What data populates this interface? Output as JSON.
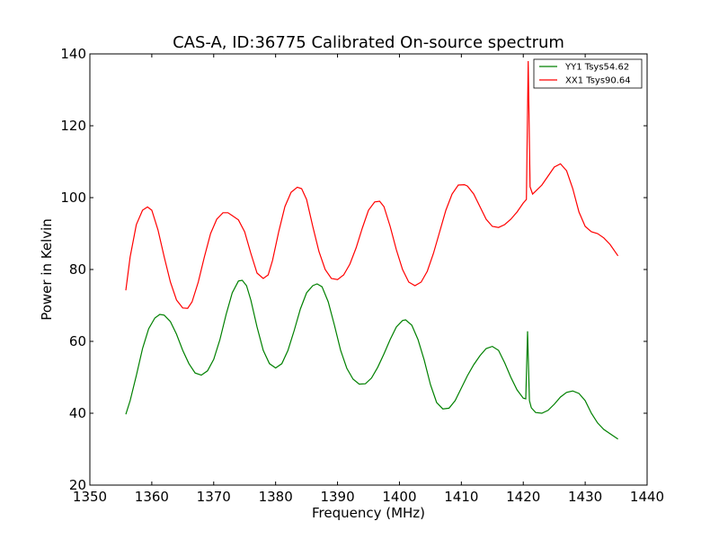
{
  "chart_data": {
    "type": "line",
    "title": "CAS-A, ID:36775 Calibrated On-source spectrum",
    "xlabel": "Frequency (MHz)",
    "ylabel": "Power in Kelvin",
    "xlim": [
      1350,
      1440
    ],
    "ylim": [
      20,
      140
    ],
    "xticks": [
      1350,
      1360,
      1370,
      1380,
      1390,
      1400,
      1410,
      1420,
      1430,
      1440
    ],
    "yticks": [
      20,
      40,
      60,
      80,
      100,
      120,
      140
    ],
    "grid": false,
    "legend_position": "top-right",
    "series": [
      {
        "name": "YY1 Tsys54.62",
        "color": "#008000",
        "x": [
          1355.8,
          1356.5,
          1357.5,
          1358.5,
          1359.5,
          1360.5,
          1361.3,
          1362.0,
          1363.0,
          1364.0,
          1365.0,
          1366.0,
          1367.0,
          1368.0,
          1369.0,
          1370.0,
          1371.0,
          1372.0,
          1373.0,
          1374.0,
          1374.6,
          1375.3,
          1376.0,
          1377.0,
          1378.0,
          1379.0,
          1380.0,
          1381.0,
          1382.0,
          1383.0,
          1384.0,
          1385.0,
          1386.0,
          1386.7,
          1387.5,
          1388.5,
          1389.5,
          1390.5,
          1391.5,
          1392.5,
          1393.5,
          1394.5,
          1395.5,
          1396.5,
          1397.5,
          1398.5,
          1399.5,
          1400.5,
          1401.0,
          1402.0,
          1403.0,
          1404.0,
          1405.0,
          1406.0,
          1407.0,
          1408.0,
          1409.0,
          1410.0,
          1411.0,
          1412.0,
          1413.0,
          1414.0,
          1415.0,
          1416.0,
          1417.0,
          1418.0,
          1419.0,
          1420.0,
          1420.4,
          1420.7,
          1421.0,
          1421.3,
          1422.0,
          1423.0,
          1424.0,
          1425.0,
          1426.0,
          1427.0,
          1428.0,
          1429.0,
          1430.0,
          1431.0,
          1432.0,
          1433.0,
          1434.0,
          1435.3
        ],
        "y": [
          39.7,
          43.5,
          50.5,
          58.0,
          63.5,
          66.5,
          67.5,
          67.3,
          65.5,
          62.0,
          57.5,
          53.8,
          51.2,
          50.6,
          51.8,
          55.0,
          60.5,
          67.5,
          73.5,
          76.8,
          77.0,
          75.5,
          71.5,
          64.0,
          57.5,
          53.8,
          52.6,
          53.8,
          57.5,
          63.0,
          69.0,
          73.5,
          75.5,
          76.0,
          75.2,
          71.0,
          64.5,
          57.5,
          52.5,
          49.5,
          48.1,
          48.2,
          49.8,
          52.8,
          56.5,
          60.5,
          64.0,
          65.8,
          66.0,
          64.5,
          60.5,
          54.8,
          48.0,
          43.0,
          41.2,
          41.4,
          43.5,
          47.0,
          50.5,
          53.5,
          56.0,
          58.0,
          58.6,
          57.5,
          54.0,
          50.0,
          46.5,
          44.2,
          44.0,
          62.8,
          43.5,
          41.5,
          40.2,
          40.0,
          40.8,
          42.5,
          44.5,
          45.8,
          46.2,
          45.5,
          43.5,
          40.0,
          37.3,
          35.5,
          34.3,
          32.8
        ]
      },
      {
        "name": "XX1 Tsys90.64",
        "color": "#ff0000",
        "x": [
          1355.8,
          1356.5,
          1357.5,
          1358.5,
          1359.3,
          1360.0,
          1361.0,
          1362.0,
          1363.0,
          1364.0,
          1365.0,
          1365.8,
          1366.5,
          1367.5,
          1368.5,
          1369.5,
          1370.5,
          1371.5,
          1372.3,
          1373.0,
          1374.0,
          1375.0,
          1376.0,
          1377.0,
          1378.0,
          1378.8,
          1379.5,
          1380.5,
          1381.5,
          1382.5,
          1383.5,
          1384.2,
          1385.0,
          1386.0,
          1387.0,
          1388.0,
          1389.0,
          1390.0,
          1391.0,
          1392.0,
          1393.0,
          1394.0,
          1395.0,
          1396.0,
          1396.8,
          1397.5,
          1398.5,
          1399.5,
          1400.5,
          1401.5,
          1402.5,
          1403.5,
          1404.5,
          1405.5,
          1406.5,
          1407.5,
          1408.5,
          1409.5,
          1410.5,
          1411.0,
          1412.0,
          1413.0,
          1414.0,
          1415.0,
          1416.0,
          1417.0,
          1418.0,
          1419.0,
          1420.0,
          1420.5,
          1420.8,
          1421.1,
          1421.5,
          1422.0,
          1423.0,
          1424.0,
          1425.0,
          1426.0,
          1427.0,
          1428.0,
          1429.0,
          1430.0,
          1431.0,
          1432.0,
          1433.0,
          1434.0,
          1435.3
        ],
        "y": [
          74.2,
          83.5,
          92.5,
          96.5,
          97.4,
          96.5,
          91.0,
          83.5,
          76.5,
          71.5,
          69.3,
          69.2,
          71.0,
          76.5,
          83.5,
          90.0,
          94.0,
          95.8,
          95.8,
          95.0,
          93.8,
          90.5,
          84.5,
          79.0,
          77.5,
          78.5,
          82.5,
          90.5,
          97.5,
          101.5,
          102.9,
          102.5,
          99.5,
          92.0,
          85.0,
          80.0,
          77.5,
          77.2,
          78.5,
          81.5,
          86.0,
          91.5,
          96.5,
          98.8,
          99.0,
          97.5,
          92.0,
          85.5,
          80.0,
          76.5,
          75.5,
          76.5,
          79.5,
          84.5,
          90.5,
          96.5,
          101.0,
          103.5,
          103.6,
          103.2,
          101.0,
          97.5,
          94.0,
          92.0,
          91.7,
          92.5,
          94.0,
          96.0,
          98.5,
          99.5,
          138.0,
          103.0,
          101.0,
          101.8,
          103.5,
          106.0,
          108.5,
          109.4,
          107.5,
          102.5,
          96.0,
          92.0,
          90.5,
          90.0,
          88.8,
          87.0,
          83.8
        ]
      }
    ]
  }
}
